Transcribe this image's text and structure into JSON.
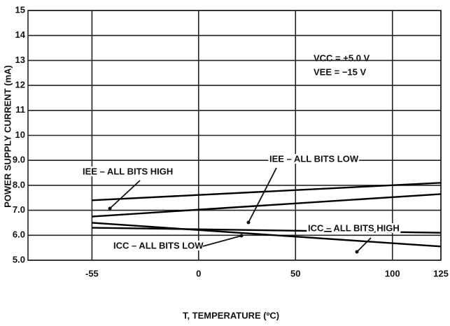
{
  "chart_data": {
    "type": "line",
    "y_label": "POWER SUPPLY CURRENT (mA)",
    "x_label": "T, TEMPERATURE (ºC)",
    "annotations": [
      "VCC = +5.0 V",
      "VEE = −15 V"
    ],
    "x": [
      -55,
      125
    ],
    "series": [
      {
        "name": "IEE – ALL BITS HIGH",
        "color": "#000000",
        "values": [
          7.4,
          8.1
        ]
      },
      {
        "name": "IEE – ALL BITS LOW",
        "color": "#000000",
        "values": [
          6.75,
          7.65
        ]
      },
      {
        "name": "ICC – ALL BITS HIGH",
        "color": "#000000",
        "values": [
          6.3,
          6.1
        ]
      },
      {
        "name": "ICC – ALL BITS LOW",
        "color": "#000000",
        "values": [
          6.5,
          5.55
        ]
      }
    ],
    "xlim": [
      -88,
      125
    ],
    "xticks": [
      -55,
      0,
      50,
      100,
      125
    ],
    "ylim": [
      5,
      15
    ],
    "yticks": [
      {
        "value": 5,
        "label": "5.0"
      },
      {
        "value": 6,
        "label": "6.0"
      },
      {
        "value": 7,
        "label": "7.0"
      },
      {
        "value": 8,
        "label": "8.0"
      },
      {
        "value": 9,
        "label": "9.0"
      },
      10,
      11,
      12,
      13,
      14,
      15
    ],
    "grid": true
  }
}
